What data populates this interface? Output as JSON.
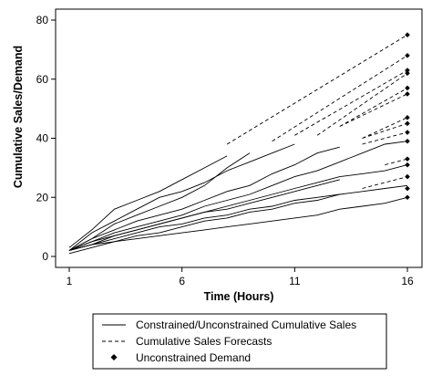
{
  "chart_data": {
    "type": "line",
    "title": "",
    "xlabel": "Time (Hours)",
    "ylabel": "Cumulative Sales/Demand",
    "xlim": [
      1,
      16
    ],
    "ylim": [
      0,
      80
    ],
    "xticks": [
      1,
      6,
      11,
      16
    ],
    "yticks": [
      0,
      20,
      40,
      60,
      80
    ],
    "grid": false,
    "legend_placement": "bottom",
    "legend": [
      {
        "label": "Constrained/Unconstrained Cumulative Sales",
        "style": "solid"
      },
      {
        "label": "Cumulative Sales Forecasts",
        "style": "dashed"
      },
      {
        "label": "Unconstrained Demand",
        "style": "diamond"
      }
    ],
    "sales_series": [
      {
        "x": [
          1,
          2,
          3,
          4,
          5,
          6,
          7,
          8
        ],
        "y": [
          3,
          9,
          16,
          19,
          22,
          26,
          30,
          34
        ]
      },
      {
        "x": [
          1,
          2,
          3,
          4,
          5,
          6,
          7,
          8,
          9,
          10,
          11
        ],
        "y": [
          2,
          8,
          12,
          16,
          20,
          22,
          25,
          29,
          32,
          35,
          38
        ]
      },
      {
        "x": [
          1,
          2,
          3,
          4,
          5,
          6,
          7,
          8,
          9
        ],
        "y": [
          2,
          6,
          11,
          14,
          17,
          20,
          24,
          30,
          35
        ]
      },
      {
        "x": [
          1,
          2,
          3,
          4,
          5,
          6,
          7,
          8,
          9,
          10,
          11,
          12,
          13
        ],
        "y": [
          2,
          6,
          9,
          12,
          14,
          16,
          19,
          22,
          24,
          28,
          31,
          35,
          37
        ]
      },
      {
        "x": [
          1,
          2,
          3,
          4,
          5,
          6,
          7,
          8,
          9,
          10,
          11,
          12,
          13,
          14,
          15,
          16
        ],
        "y": [
          2,
          5,
          8,
          10,
          12,
          14,
          17,
          19,
          21,
          24,
          27,
          29,
          32,
          35,
          38,
          39
        ]
      },
      {
        "x": [
          1,
          2,
          3,
          4,
          5,
          6,
          7,
          8,
          9,
          10,
          11,
          12,
          13,
          14,
          15,
          16
        ],
        "y": [
          2,
          5,
          7,
          9,
          11,
          13,
          15,
          17,
          19,
          21,
          23,
          25,
          27,
          28,
          29,
          31
        ]
      },
      {
        "x": [
          1,
          2,
          3,
          4,
          5,
          6,
          7,
          8,
          9,
          10,
          11,
          12,
          13
        ],
        "y": [
          2,
          4,
          7,
          9,
          11,
          13,
          15,
          16,
          18,
          20,
          22,
          24,
          26
        ]
      },
      {
        "x": [
          1,
          2,
          3,
          4,
          5,
          6,
          7,
          8,
          9,
          10,
          11,
          12,
          13,
          14,
          15,
          16
        ],
        "y": [
          2,
          4,
          6,
          8,
          10,
          11,
          13,
          14,
          16,
          17,
          19,
          20,
          21,
          22,
          23,
          24
        ]
      },
      {
        "x": [
          1,
          2,
          3,
          4,
          5,
          6,
          7,
          8,
          9,
          10,
          11,
          12,
          13,
          14,
          15,
          16
        ],
        "y": [
          2,
          4,
          5,
          6,
          7,
          8,
          9,
          10,
          11,
          12,
          13,
          14,
          16,
          17,
          18,
          20
        ]
      },
      {
        "x": [
          1,
          2,
          3,
          4,
          5,
          6,
          7,
          8,
          9,
          10,
          11,
          12,
          13
        ],
        "y": [
          1,
          3,
          5,
          7,
          8,
          10,
          12,
          13,
          15,
          16,
          18,
          19,
          21
        ]
      }
    ],
    "forecast_series": [
      {
        "x": [
          8,
          16
        ],
        "y": [
          38,
          75
        ]
      },
      {
        "x": [
          10,
          16
        ],
        "y": [
          39,
          68
        ]
      },
      {
        "x": [
          11,
          16
        ],
        "y": [
          41,
          63
        ]
      },
      {
        "x": [
          12,
          16
        ],
        "y": [
          41,
          62
        ]
      },
      {
        "x": [
          13,
          16
        ],
        "y": [
          44,
          57
        ]
      },
      {
        "x": [
          13,
          16
        ],
        "y": [
          44,
          55
        ]
      },
      {
        "x": [
          14,
          16
        ],
        "y": [
          40,
          47
        ]
      },
      {
        "x": [
          14,
          16
        ],
        "y": [
          40,
          45
        ]
      },
      {
        "x": [
          14,
          16
        ],
        "y": [
          38,
          42
        ]
      },
      {
        "x": [
          14,
          16
        ],
        "y": [
          23,
          27
        ]
      },
      {
        "x": [
          15,
          16
        ],
        "y": [
          31,
          33
        ]
      }
    ],
    "demand_points": [
      {
        "x": 16,
        "y": 75
      },
      {
        "x": 16,
        "y": 68
      },
      {
        "x": 16,
        "y": 63
      },
      {
        "x": 16,
        "y": 62
      },
      {
        "x": 16,
        "y": 57
      },
      {
        "x": 16,
        "y": 55
      },
      {
        "x": 16,
        "y": 47
      },
      {
        "x": 16,
        "y": 45
      },
      {
        "x": 16,
        "y": 42
      },
      {
        "x": 16,
        "y": 39
      },
      {
        "x": 16,
        "y": 33
      },
      {
        "x": 16,
        "y": 31
      },
      {
        "x": 16,
        "y": 27
      },
      {
        "x": 16,
        "y": 23
      },
      {
        "x": 16,
        "y": 20
      }
    ]
  }
}
